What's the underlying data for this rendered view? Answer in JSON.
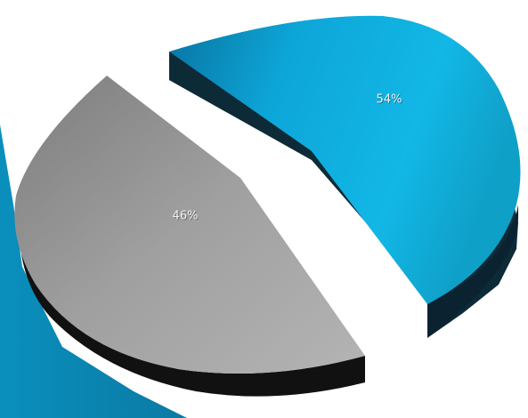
{
  "chart_data": {
    "type": "pie",
    "style": "3d-exploded",
    "slices": [
      {
        "label": "54%",
        "value": 54,
        "color": "#17a9d6"
      },
      {
        "label": "46%",
        "value": 46,
        "color": "#9a9a9a"
      }
    ],
    "legend": "none",
    "title": ""
  },
  "colors": {
    "background": "#ffffff",
    "blue_accent": "#0a95c1",
    "blue_side": "#0f2e3c",
    "gray_side": "#121212"
  }
}
